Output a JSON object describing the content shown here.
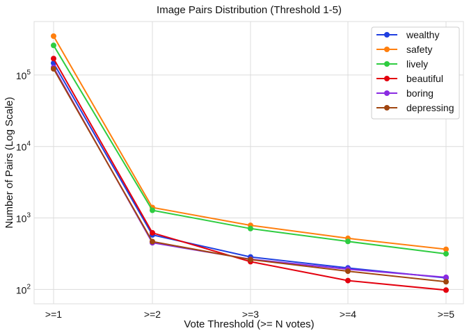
{
  "chart_data": {
    "type": "line",
    "title": "Image Pairs Distribution (Threshold 1-5)",
    "xlabel": "Vote Threshold (>= N votes)",
    "ylabel": "Number of Pairs (Log Scale)",
    "yscale": "log",
    "ylim": [
      63,
      560000
    ],
    "categories": [
      ">=1",
      ">=2",
      ">=3",
      ">=4",
      ">=5"
    ],
    "y_ticks": [
      {
        "value": 100,
        "base": "10",
        "exp": "2"
      },
      {
        "value": 1000,
        "base": "10",
        "exp": "3"
      },
      {
        "value": 10000,
        "base": "10",
        "exp": "4"
      },
      {
        "value": 100000,
        "base": "10",
        "exp": "5"
      }
    ],
    "grid": true,
    "legend_position": "top-right",
    "series": [
      {
        "name": "wealthy",
        "color": "#1f3fe0",
        "values": [
          147000,
          580,
          285,
          200,
          145
        ]
      },
      {
        "name": "safety",
        "color": "#ff7f0e",
        "values": [
          350000,
          1400,
          790,
          520,
          365
        ]
      },
      {
        "name": "lively",
        "color": "#2ecc40",
        "values": [
          260000,
          1280,
          710,
          470,
          315
        ]
      },
      {
        "name": "beautiful",
        "color": "#e3000e",
        "values": [
          170000,
          620,
          245,
          133,
          98
        ]
      },
      {
        "name": "boring",
        "color": "#8a2be2",
        "values": [
          128000,
          450,
          265,
          192,
          148
        ]
      },
      {
        "name": "depressing",
        "color": "#a0450f",
        "values": [
          122000,
          468,
          262,
          180,
          128
        ]
      }
    ]
  }
}
